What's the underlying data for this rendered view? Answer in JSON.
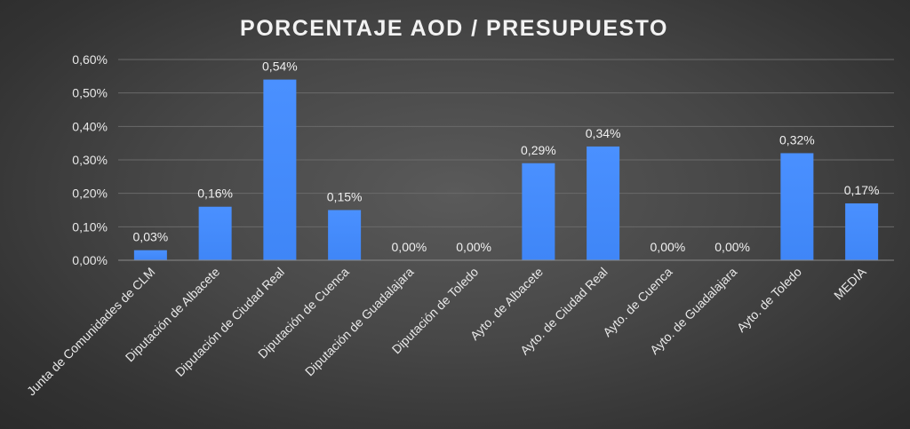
{
  "chart_data": {
    "type": "bar",
    "title": "PORCENTAJE  AOD  /  PRESUPUESTO",
    "categories": [
      "Junta de Comunidades de CLM",
      "Diputación de Albacete",
      "Diputación de Ciudad Real",
      "Diputación de Cuenca",
      "Diputación de Guadalajara",
      "Diputación de Toledo",
      "Ayto. de Albacete",
      "Ayto. de Ciudad Real",
      "Ayto. de Cuenca",
      "Ayto. de Guadalajara",
      "Ayto. de Toledo",
      "MEDIA"
    ],
    "values": [
      0.03,
      0.16,
      0.54,
      0.15,
      0.0,
      0.0,
      0.29,
      0.34,
      0.0,
      0.0,
      0.32,
      0.17
    ],
    "data_labels": [
      "0,03%",
      "0,16%",
      "0,54%",
      "0,15%",
      "0,00%",
      "0,00%",
      "0,29%",
      "0,34%",
      "0,00%",
      "0,00%",
      "0,32%",
      "0,17%"
    ],
    "yticks": [
      0,
      0.1,
      0.2,
      0.3,
      0.4,
      0.5,
      0.6
    ],
    "ytick_labels": [
      "0,00%",
      "0,10%",
      "0,20%",
      "0,30%",
      "0,40%",
      "0,50%",
      "0,60%"
    ],
    "ylim": [
      0,
      0.6
    ],
    "xlabel": "",
    "ylabel": "",
    "grid": true,
    "legend": "none",
    "bar_color": "#3f86f7",
    "background_color": "#404040"
  }
}
